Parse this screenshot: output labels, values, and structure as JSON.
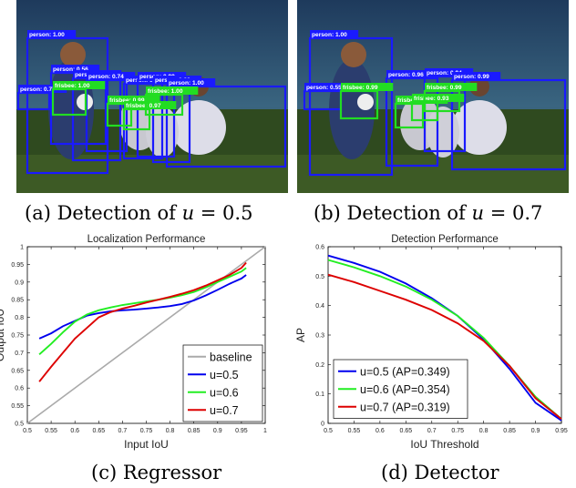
{
  "panels": {
    "a": {
      "caption_prefix": "(a) Detection of ",
      "caption_var": "u",
      "caption_suffix": " = 0.5",
      "detections": [
        {
          "label": "person: 1.00",
          "cls": "person"
        },
        {
          "label": "person: 0.56",
          "cls": "person"
        },
        {
          "label": "person: 0.64",
          "cls": "person"
        },
        {
          "label": "person: 0.74",
          "cls": "person"
        },
        {
          "label": "person: 0.93",
          "cls": "person"
        },
        {
          "label": "person: 0.99",
          "cls": "person"
        },
        {
          "label": "person: 0.92",
          "cls": "person"
        },
        {
          "label": "person: 1.00",
          "cls": "person"
        },
        {
          "label": "person: 0.77",
          "cls": "person"
        },
        {
          "label": "frisbee: 1.00",
          "cls": "frisbee"
        },
        {
          "label": "frisbee: 0.99",
          "cls": "frisbee"
        },
        {
          "label": "frisbee: 0.97",
          "cls": "frisbee"
        },
        {
          "label": "frisbee: 1.00",
          "cls": "frisbee"
        }
      ]
    },
    "b": {
      "caption_prefix": "(b) Detection of ",
      "caption_var": "u",
      "caption_suffix": " = 0.7",
      "detections": [
        {
          "label": "person: 1.00",
          "cls": "person"
        },
        {
          "label": "person: 0.55",
          "cls": "person"
        },
        {
          "label": "person: 0.96",
          "cls": "person"
        },
        {
          "label": "person: 0.94",
          "cls": "person"
        },
        {
          "label": "person: 0.99",
          "cls": "person"
        },
        {
          "label": "frisbee: 0.99",
          "cls": "frisbee"
        },
        {
          "label": "frisbee: 0.96",
          "cls": "frisbee"
        },
        {
          "label": "frisbee: 0.93",
          "cls": "frisbee"
        },
        {
          "label": "frisbee: 0.99",
          "cls": "frisbee"
        }
      ]
    },
    "c": {
      "caption": "(c) Regressor"
    },
    "d": {
      "caption": "(d) Detector"
    }
  },
  "colors": {
    "person": "#1a1aff",
    "frisbee": "#22dd22",
    "blue": "#0000ee",
    "green": "#22ee22",
    "red": "#dd0000",
    "gray": "#aaaaaa"
  },
  "chart_data": [
    {
      "type": "line",
      "title": "Localization Performance",
      "xlabel": "Input IoU",
      "ylabel": "Output IoU",
      "xlim": [
        0.5,
        1.0
      ],
      "ylim": [
        0.5,
        1.0
      ],
      "xticks": [
        "0.5",
        "0.55",
        "0.6",
        "0.65",
        "0.7",
        "0.75",
        "0.8",
        "0.85",
        "0.9",
        "0.95",
        "1"
      ],
      "yticks": [
        "0.5",
        "0.55",
        "0.6",
        "0.65",
        "0.7",
        "0.75",
        "0.8",
        "0.85",
        "0.9",
        "0.95",
        "1"
      ],
      "legend_position": "bottom-right",
      "series": [
        {
          "name": "baseline",
          "color": "#aaaaaa",
          "x": [
            0.5,
            1.0
          ],
          "y": [
            0.5,
            1.0
          ]
        },
        {
          "name": "u=0.5",
          "color": "#0000ee",
          "x": [
            0.525,
            0.55,
            0.575,
            0.6,
            0.625,
            0.65,
            0.675,
            0.7,
            0.725,
            0.75,
            0.775,
            0.8,
            0.825,
            0.85,
            0.875,
            0.9,
            0.925,
            0.95,
            0.96
          ],
          "y": [
            0.74,
            0.755,
            0.775,
            0.79,
            0.805,
            0.812,
            0.817,
            0.82,
            0.822,
            0.825,
            0.828,
            0.832,
            0.838,
            0.848,
            0.862,
            0.878,
            0.895,
            0.91,
            0.92
          ]
        },
        {
          "name": "u=0.6",
          "color": "#22ee22",
          "x": [
            0.525,
            0.55,
            0.575,
            0.6,
            0.625,
            0.65,
            0.675,
            0.7,
            0.725,
            0.75,
            0.775,
            0.8,
            0.825,
            0.85,
            0.875,
            0.9,
            0.925,
            0.95,
            0.96
          ],
          "y": [
            0.695,
            0.725,
            0.758,
            0.788,
            0.808,
            0.82,
            0.828,
            0.835,
            0.84,
            0.845,
            0.85,
            0.856,
            0.863,
            0.872,
            0.885,
            0.9,
            0.915,
            0.93,
            0.94
          ]
        },
        {
          "name": "u=0.7",
          "color": "#dd0000",
          "x": [
            0.525,
            0.55,
            0.575,
            0.6,
            0.625,
            0.65,
            0.675,
            0.7,
            0.725,
            0.75,
            0.775,
            0.8,
            0.825,
            0.85,
            0.875,
            0.9,
            0.925,
            0.95,
            0.96
          ],
          "y": [
            0.618,
            0.66,
            0.7,
            0.74,
            0.77,
            0.8,
            0.815,
            0.825,
            0.833,
            0.842,
            0.85,
            0.858,
            0.867,
            0.877,
            0.89,
            0.905,
            0.92,
            0.94,
            0.955
          ]
        }
      ]
    },
    {
      "type": "line",
      "title": "Detection Performance",
      "xlabel": "IoU Threshold",
      "ylabel": "AP",
      "xlim": [
        0.5,
        0.95
      ],
      "ylim": [
        0,
        0.6
      ],
      "xticks": [
        "0.5",
        "0.55",
        "0.6",
        "0.65",
        "0.7",
        "0.75",
        "0.8",
        "0.85",
        "0.9",
        "0.95"
      ],
      "yticks": [
        "0",
        "0.1",
        "0.2",
        "0.3",
        "0.4",
        "0.5",
        "0.6"
      ],
      "legend_position": "bottom-left",
      "series": [
        {
          "name": "u=0.5 (AP=0.349)",
          "color": "#0000ee",
          "x": [
            0.5,
            0.55,
            0.6,
            0.65,
            0.7,
            0.75,
            0.8,
            0.85,
            0.9,
            0.95
          ],
          "y": [
            0.57,
            0.545,
            0.515,
            0.475,
            0.425,
            0.365,
            0.285,
            0.185,
            0.07,
            0.01
          ]
        },
        {
          "name": "u=0.6 (AP=0.354)",
          "color": "#22ee22",
          "x": [
            0.5,
            0.55,
            0.6,
            0.65,
            0.7,
            0.75,
            0.8,
            0.85,
            0.9,
            0.95
          ],
          "y": [
            0.555,
            0.53,
            0.5,
            0.465,
            0.42,
            0.365,
            0.29,
            0.195,
            0.09,
            0.015
          ]
        },
        {
          "name": "u=0.7 (AP=0.319)",
          "color": "#dd0000",
          "x": [
            0.5,
            0.55,
            0.6,
            0.65,
            0.7,
            0.75,
            0.8,
            0.85,
            0.9,
            0.95
          ],
          "y": [
            0.505,
            0.48,
            0.45,
            0.42,
            0.385,
            0.34,
            0.28,
            0.195,
            0.085,
            0.015
          ]
        }
      ]
    }
  ]
}
